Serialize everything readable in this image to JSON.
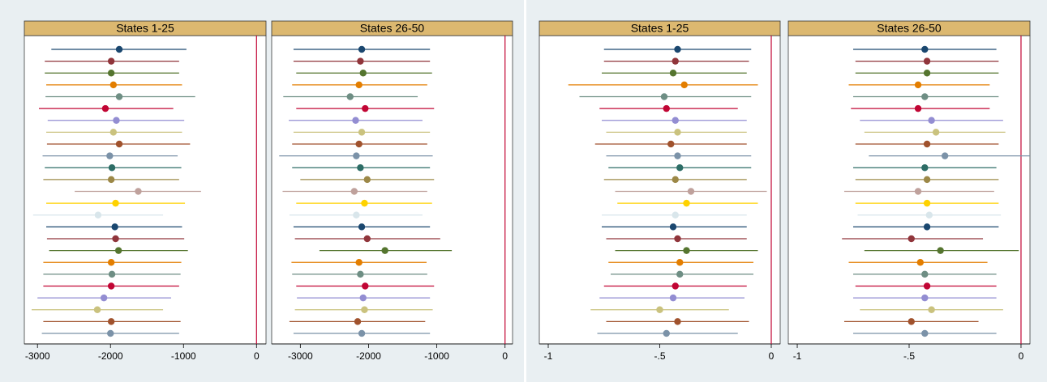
{
  "chart_data": [
    {
      "type": "errorbar",
      "title": "States 1-25",
      "values": [
        -1880,
        -1990,
        -1990,
        -1960,
        -1880,
        -2070,
        -1920,
        -1960,
        -1880,
        -2010,
        -1980,
        -1990,
        -1620,
        -1930,
        -2170,
        -1940,
        -1930,
        -1890,
        -1990,
        -1980,
        -1990,
        -2090,
        -2180,
        -1990,
        -2000
      ],
      "ci_low": [
        -2810,
        -2900,
        -2900,
        -2880,
        -2890,
        -2980,
        -2860,
        -2880,
        -2870,
        -2930,
        -2900,
        -2920,
        -2490,
        -2880,
        -3060,
        -2880,
        -2870,
        -2840,
        -2920,
        -2920,
        -2920,
        -3000,
        -3080,
        -2920,
        -2940
      ],
      "ci_high": [
        -960,
        -1060,
        -1060,
        -1020,
        -840,
        -1140,
        -990,
        -1020,
        -910,
        -1080,
        -1030,
        -1060,
        -760,
        -980,
        -1280,
        -1020,
        -990,
        -940,
        -1030,
        -1040,
        -1060,
        -1170,
        -1280,
        -1040,
        -1060
      ],
      "colors": [
        "#1a476f",
        "#90353b",
        "#55752f",
        "#e37e00",
        "#6e8e84",
        "#c10534",
        "#938dd2",
        "#cac27e",
        "#a0522d",
        "#7b92a8",
        "#2d6d66",
        "#9c8847",
        "#bfa19c",
        "#ffd200",
        "#d9e6eb",
        "#1a476f",
        "#90353b",
        "#55752f",
        "#e37e00",
        "#6e8e84",
        "#c10534",
        "#938dd2",
        "#cac27e",
        "#a0522d",
        "#7b92a8"
      ],
      "xlim": [
        -3180,
        130
      ],
      "xticks": [
        -3000,
        -2000,
        -1000,
        0
      ],
      "refline": 0,
      "refline_color": "#c10534"
    },
    {
      "type": "errorbar",
      "title": "States 26-50",
      "values": [
        -2100,
        -2120,
        -2080,
        -2140,
        -2270,
        -2050,
        -2190,
        -2100,
        -2140,
        -2180,
        -2120,
        -2020,
        -2210,
        -2060,
        -2180,
        -2100,
        -2020,
        -1760,
        -2140,
        -2120,
        -2050,
        -2080,
        -2060,
        -2160,
        -2100
      ],
      "ci_low": [
        -3100,
        -3100,
        -3060,
        -3120,
        -3250,
        -3060,
        -3170,
        -3100,
        -3120,
        -3310,
        -3120,
        -3000,
        -3260,
        -3060,
        -3160,
        -3100,
        -3080,
        -2720,
        -3130,
        -3120,
        -3060,
        -3050,
        -3080,
        -3160,
        -3100
      ],
      "ci_high": [
        -1100,
        -1100,
        -1070,
        -1140,
        -1280,
        -1040,
        -1210,
        -1100,
        -1140,
        -1060,
        -1100,
        -1040,
        -1140,
        -1070,
        -1210,
        -1100,
        -950,
        -780,
        -1150,
        -1140,
        -1040,
        -1100,
        -1060,
        -1170,
        -1100
      ],
      "colors": [
        "#1a476f",
        "#90353b",
        "#55752f",
        "#e37e00",
        "#6e8e84",
        "#c10534",
        "#938dd2",
        "#cac27e",
        "#a0522d",
        "#7b92a8",
        "#2d6d66",
        "#9c8847",
        "#bfa19c",
        "#ffd200",
        "#d9e6eb",
        "#1a476f",
        "#90353b",
        "#55752f",
        "#e37e00",
        "#6e8e84",
        "#c10534",
        "#938dd2",
        "#cac27e",
        "#a0522d",
        "#7b92a8"
      ],
      "xlim": [
        -3420,
        110
      ],
      "xticks": [
        -3000,
        -2000,
        -1000,
        0
      ],
      "refline": 0,
      "refline_color": "#c10534"
    },
    {
      "type": "errorbar",
      "title": "States 1-25",
      "values": [
        -0.42,
        -0.43,
        -0.44,
        -0.39,
        -0.48,
        -0.47,
        -0.43,
        -0.42,
        -0.45,
        -0.42,
        -0.41,
        -0.43,
        -0.36,
        -0.38,
        -0.43,
        -0.44,
        -0.42,
        -0.38,
        -0.41,
        -0.41,
        -0.43,
        -0.44,
        -0.5,
        -0.42,
        -0.47
      ],
      "ci_low": [
        -0.75,
        -0.75,
        -0.76,
        -0.91,
        -0.86,
        -0.77,
        -0.76,
        -0.74,
        -0.79,
        -0.74,
        -0.73,
        -0.75,
        -0.7,
        -0.69,
        -0.76,
        -0.76,
        -0.74,
        -0.7,
        -0.73,
        -0.72,
        -0.75,
        -0.77,
        -0.81,
        -0.74,
        -0.78
      ],
      "ci_high": [
        -0.09,
        -0.1,
        -0.11,
        -0.06,
        -0.09,
        -0.15,
        -0.11,
        -0.11,
        -0.11,
        -0.09,
        -0.09,
        -0.11,
        -0.02,
        -0.06,
        -0.11,
        -0.11,
        -0.11,
        -0.06,
        -0.08,
        -0.08,
        -0.11,
        -0.12,
        -0.19,
        -0.1,
        -0.15
      ],
      "colors": [
        "#1a476f",
        "#90353b",
        "#55752f",
        "#e37e00",
        "#6e8e84",
        "#c10534",
        "#938dd2",
        "#cac27e",
        "#a0522d",
        "#7b92a8",
        "#2d6d66",
        "#9c8847",
        "#bfa19c",
        "#ffd200",
        "#d9e6eb",
        "#1a476f",
        "#90353b",
        "#55752f",
        "#e37e00",
        "#6e8e84",
        "#c10534",
        "#938dd2",
        "#cac27e",
        "#a0522d",
        "#7b92a8"
      ],
      "xlim": [
        -1.04,
        0.04
      ],
      "xticks": [
        -1,
        {
          "value": -0.5,
          "label": "-.5"
        },
        0
      ],
      "refline": 0,
      "refline_color": "#c10534"
    },
    {
      "type": "errorbar",
      "title": "States 26-50",
      "values": [
        -0.43,
        -0.42,
        -0.42,
        -0.46,
        -0.43,
        -0.46,
        -0.4,
        -0.38,
        -0.42,
        -0.34,
        -0.43,
        -0.42,
        -0.46,
        -0.42,
        -0.41,
        -0.42,
        -0.49,
        -0.36,
        -0.45,
        -0.43,
        -0.42,
        -0.43,
        -0.4,
        -0.49,
        -0.43
      ],
      "ci_low": [
        -0.75,
        -0.74,
        -0.74,
        -0.77,
        -0.75,
        -0.76,
        -0.72,
        -0.7,
        -0.74,
        -0.68,
        -0.75,
        -0.74,
        -0.79,
        -0.74,
        -0.73,
        -0.75,
        -0.8,
        -0.7,
        -0.77,
        -0.75,
        -0.74,
        -0.75,
        -0.72,
        -0.79,
        -0.75
      ],
      "ci_high": [
        -0.11,
        -0.1,
        -0.1,
        -0.14,
        -0.1,
        -0.14,
        -0.08,
        -0.07,
        -0.1,
        0.04,
        -0.11,
        -0.1,
        -0.12,
        -0.1,
        -0.09,
        -0.1,
        -0.17,
        -0.01,
        -0.15,
        -0.11,
        -0.11,
        -0.11,
        -0.08,
        -0.19,
        -0.11
      ],
      "colors": [
        "#1a476f",
        "#90353b",
        "#55752f",
        "#e37e00",
        "#6e8e84",
        "#c10534",
        "#938dd2",
        "#cac27e",
        "#a0522d",
        "#7b92a8",
        "#2d6d66",
        "#9c8847",
        "#bfa19c",
        "#ffd200",
        "#d9e6eb",
        "#1a476f",
        "#90353b",
        "#55752f",
        "#e37e00",
        "#6e8e84",
        "#c10534",
        "#938dd2",
        "#cac27e",
        "#a0522d",
        "#7b92a8"
      ],
      "xlim": [
        -1.04,
        0.04
      ],
      "xticks": [
        -1,
        {
          "value": -0.5,
          "label": "-.5"
        },
        0
      ],
      "refline": 0,
      "refline_color": "#c10534"
    }
  ]
}
